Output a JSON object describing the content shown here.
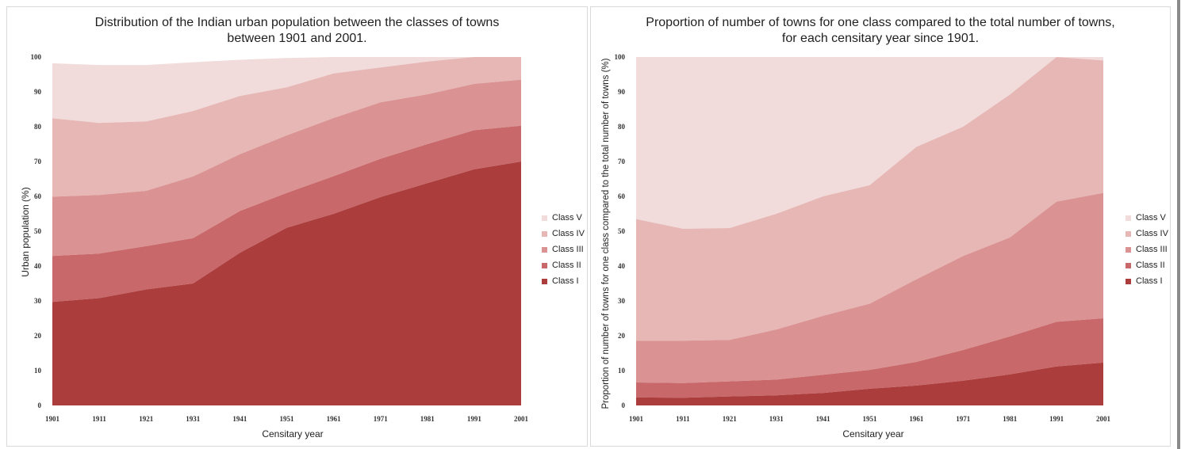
{
  "chart_data": [
    {
      "type": "area",
      "stacked": true,
      "title_lines": [
        "Distribution of the Indian urban population between the classes of towns",
        "between 1901 and 2001."
      ],
      "xlabel": "Censitary year",
      "ylabel": "Urban population (%)",
      "ylim": [
        0,
        100
      ],
      "yticks": [
        0,
        10,
        20,
        30,
        40,
        50,
        60,
        70,
        80,
        90,
        100
      ],
      "x": [
        1901,
        1911,
        1921,
        1931,
        1941,
        1951,
        1961,
        1971,
        1981,
        1991,
        2001
      ],
      "legend_position": "right",
      "series": [
        {
          "name": "Class I",
          "color": "#ab3e3c",
          "values": [
            29.7,
            30.8,
            33.3,
            35.0,
            43.8,
            51.0,
            55.0,
            59.8,
            63.8,
            67.8,
            70.0
          ]
        },
        {
          "name": "Class II",
          "color": "#c9686a",
          "values": [
            13.2,
            12.8,
            12.4,
            13.0,
            12.0,
            10.0,
            10.8,
            11.0,
            11.2,
            11.2,
            10.3
          ]
        },
        {
          "name": "Class III",
          "color": "#da9392",
          "values": [
            17.0,
            16.8,
            15.9,
            17.7,
            16.3,
            16.5,
            16.7,
            16.2,
            14.3,
            13.3,
            13.2
          ]
        },
        {
          "name": "Class IV",
          "color": "#e6b7b5",
          "values": [
            22.5,
            20.7,
            19.9,
            18.8,
            16.7,
            13.8,
            12.8,
            10.0,
            9.4,
            7.7,
            6.5
          ]
        },
        {
          "name": "Class V",
          "color": "#f1dcdb",
          "values": [
            15.8,
            16.6,
            16.2,
            14.0,
            10.4,
            8.4,
            4.7,
            3.0,
            1.3,
            0.0,
            0.0
          ]
        }
      ]
    },
    {
      "type": "area",
      "stacked": true,
      "title_lines": [
        "Proportion of number of towns for one class compared to the total number of towns,",
        "for each censitary year since 1901."
      ],
      "xlabel": "Censitary year",
      "ylabel": "Proportion of number of towns for one class compared to the total number of towns (%)",
      "ylim": [
        0,
        100
      ],
      "yticks": [
        0,
        10,
        20,
        30,
        40,
        50,
        60,
        70,
        80,
        90,
        100
      ],
      "x": [
        1901,
        1911,
        1921,
        1931,
        1941,
        1951,
        1961,
        1971,
        1981,
        1991,
        2001
      ],
      "legend_position": "right",
      "series": [
        {
          "name": "Class I",
          "color": "#ab3e3c",
          "values": [
            2.3,
            2.2,
            2.6,
            2.9,
            3.6,
            4.8,
            5.7,
            7.1,
            8.9,
            11.2,
            12.3
          ]
        },
        {
          "name": "Class II",
          "color": "#c9686a",
          "values": [
            4.3,
            4.2,
            4.3,
            4.5,
            5.2,
            5.4,
            6.8,
            8.8,
            10.9,
            12.8,
            12.7
          ]
        },
        {
          "name": "Class III",
          "color": "#da9392",
          "values": [
            12.0,
            12.2,
            11.9,
            14.4,
            16.9,
            19.0,
            23.7,
            27.0,
            28.4,
            34.5,
            36.0
          ]
        },
        {
          "name": "Class IV",
          "color": "#e6b7b5",
          "values": [
            34.9,
            32.1,
            32.1,
            33.2,
            34.3,
            34.0,
            38.0,
            37.1,
            41.0,
            41.5,
            38.0
          ]
        },
        {
          "name": "Class V",
          "color": "#f1dcdb",
          "values": [
            46.5,
            49.3,
            49.1,
            45.0,
            40.0,
            36.8,
            25.8,
            20.0,
            10.8,
            0.0,
            1.0
          ]
        }
      ]
    }
  ]
}
